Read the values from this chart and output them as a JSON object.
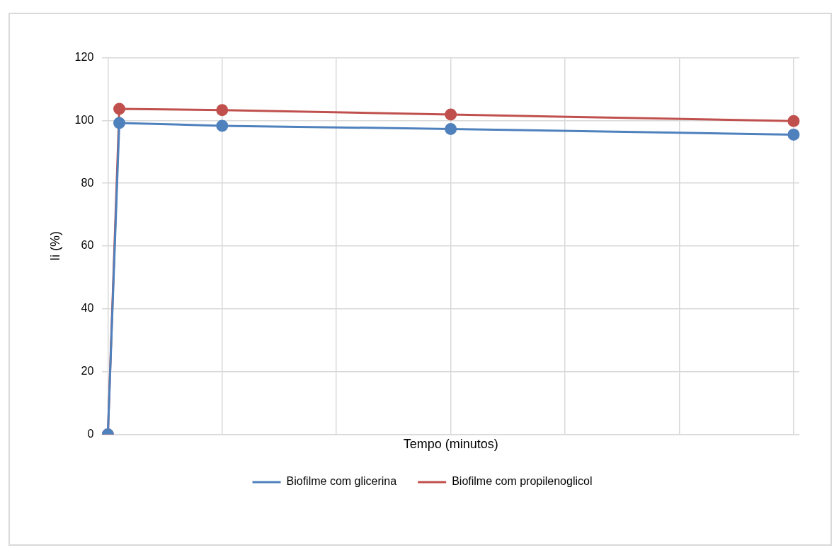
{
  "chart_data": {
    "type": "line",
    "xlabel": "Tempo (minutos)",
    "ylabel": "Ii (%)",
    "categories": [
      null,
      null,
      null,
      null,
      null,
      null,
      null,
      null,
      null,
      null,
      null,
      null,
      null,
      null,
      null,
      null,
      null,
      null,
      null,
      null,
      null,
      null,
      null,
      null,
      null,
      null,
      null,
      null,
      null,
      null,
      null,
      null,
      null,
      null,
      null,
      null,
      null,
      null,
      null,
      null,
      null,
      null,
      null,
      null,
      null,
      null,
      null,
      null,
      null,
      null,
      null,
      null,
      null,
      null,
      null,
      null,
      null,
      null,
      null,
      null,
      null
    ],
    "ylim": [
      0,
      120
    ],
    "yticks": [
      0,
      20,
      40,
      60,
      80,
      100,
      120
    ],
    "tick_labels": "y",
    "grid": true,
    "legend": "bottom",
    "marker": "circle",
    "line_style": "solid",
    "series": [
      {
        "name": "Biofilme com glicerina",
        "color": "#4f81bd",
        "values": [
          0,
          99.2,
          null,
          null,
          null,
          null,
          null,
          null,
          null,
          null,
          98.3,
          null,
          null,
          null,
          null,
          null,
          null,
          null,
          null,
          null,
          null,
          null,
          null,
          null,
          null,
          null,
          null,
          null,
          null,
          null,
          97.3,
          null,
          null,
          null,
          null,
          null,
          null,
          null,
          null,
          null,
          null,
          null,
          null,
          null,
          null,
          null,
          null,
          null,
          null,
          null,
          null,
          null,
          null,
          null,
          null,
          null,
          null,
          null,
          null,
          null,
          95.5
        ]
      },
      {
        "name": "Biofilme com propilenoglicol",
        "color": "#c0504d",
        "values": [
          0,
          103.7,
          null,
          null,
          null,
          null,
          null,
          null,
          null,
          null,
          103.3,
          null,
          null,
          null,
          null,
          null,
          null,
          null,
          null,
          null,
          null,
          null,
          null,
          null,
          null,
          null,
          null,
          null,
          null,
          null,
          101.9,
          null,
          null,
          null,
          null,
          null,
          null,
          null,
          null,
          null,
          null,
          null,
          null,
          null,
          null,
          null,
          null,
          null,
          null,
          null,
          null,
          null,
          null,
          null,
          null,
          null,
          null,
          null,
          null,
          null,
          99.8
        ]
      }
    ]
  }
}
